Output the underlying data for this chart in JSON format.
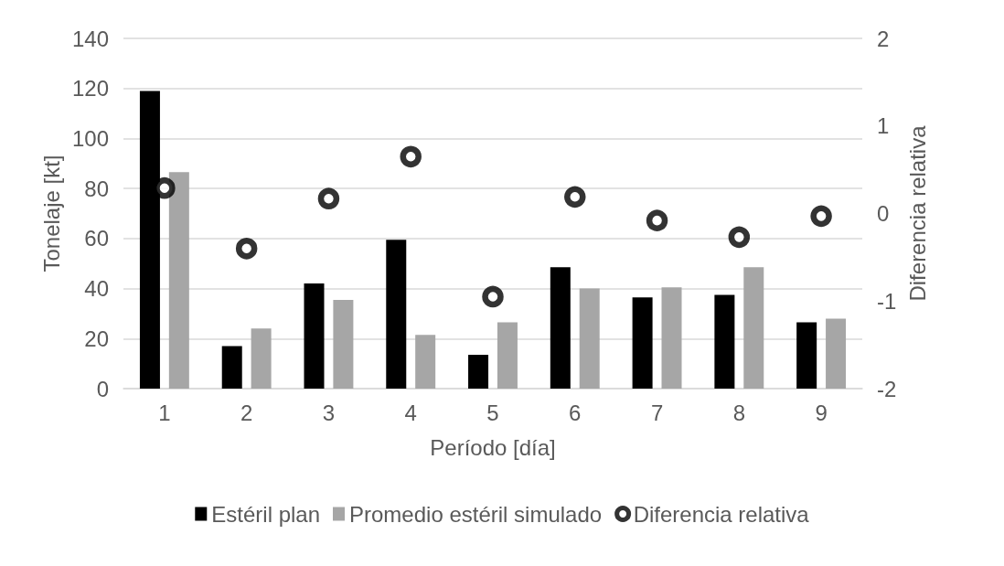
{
  "chart_data": {
    "type": "bar",
    "xlabel": "Período [día]",
    "ylabel": "Tonelaje [kt]",
    "y2label": "Diferencia relativa",
    "categories": [
      "1",
      "2",
      "3",
      "4",
      "5",
      "6",
      "7",
      "8",
      "9"
    ],
    "series": [
      {
        "name": "Estéril plan",
        "color": "#000000",
        "values": [
          119,
          17,
          42,
          59.5,
          13.5,
          48.5,
          36.5,
          37.5,
          26.5
        ]
      },
      {
        "name": "Promedio estéril simulado",
        "color": "#a6a6a6",
        "values": [
          86.5,
          24,
          35.5,
          21.5,
          26.5,
          40,
          40.5,
          48.5,
          28
        ]
      },
      {
        "name": "Diferencia relativa",
        "type": "scatter",
        "axis": "y2",
        "color": "#000000",
        "marker": "circle",
        "values": [
          0.29,
          -0.4,
          0.17,
          0.65,
          -0.95,
          0.19,
          -0.08,
          -0.27,
          -0.03
        ]
      }
    ],
    "ylim": [
      0,
      140
    ],
    "yticks": [
      0,
      20,
      40,
      60,
      80,
      100,
      120,
      140
    ],
    "y2lim": [
      -2,
      2
    ],
    "y2ticks": [
      -2,
      -1,
      0,
      1,
      2
    ],
    "grid": "y",
    "legend": "bottom"
  }
}
